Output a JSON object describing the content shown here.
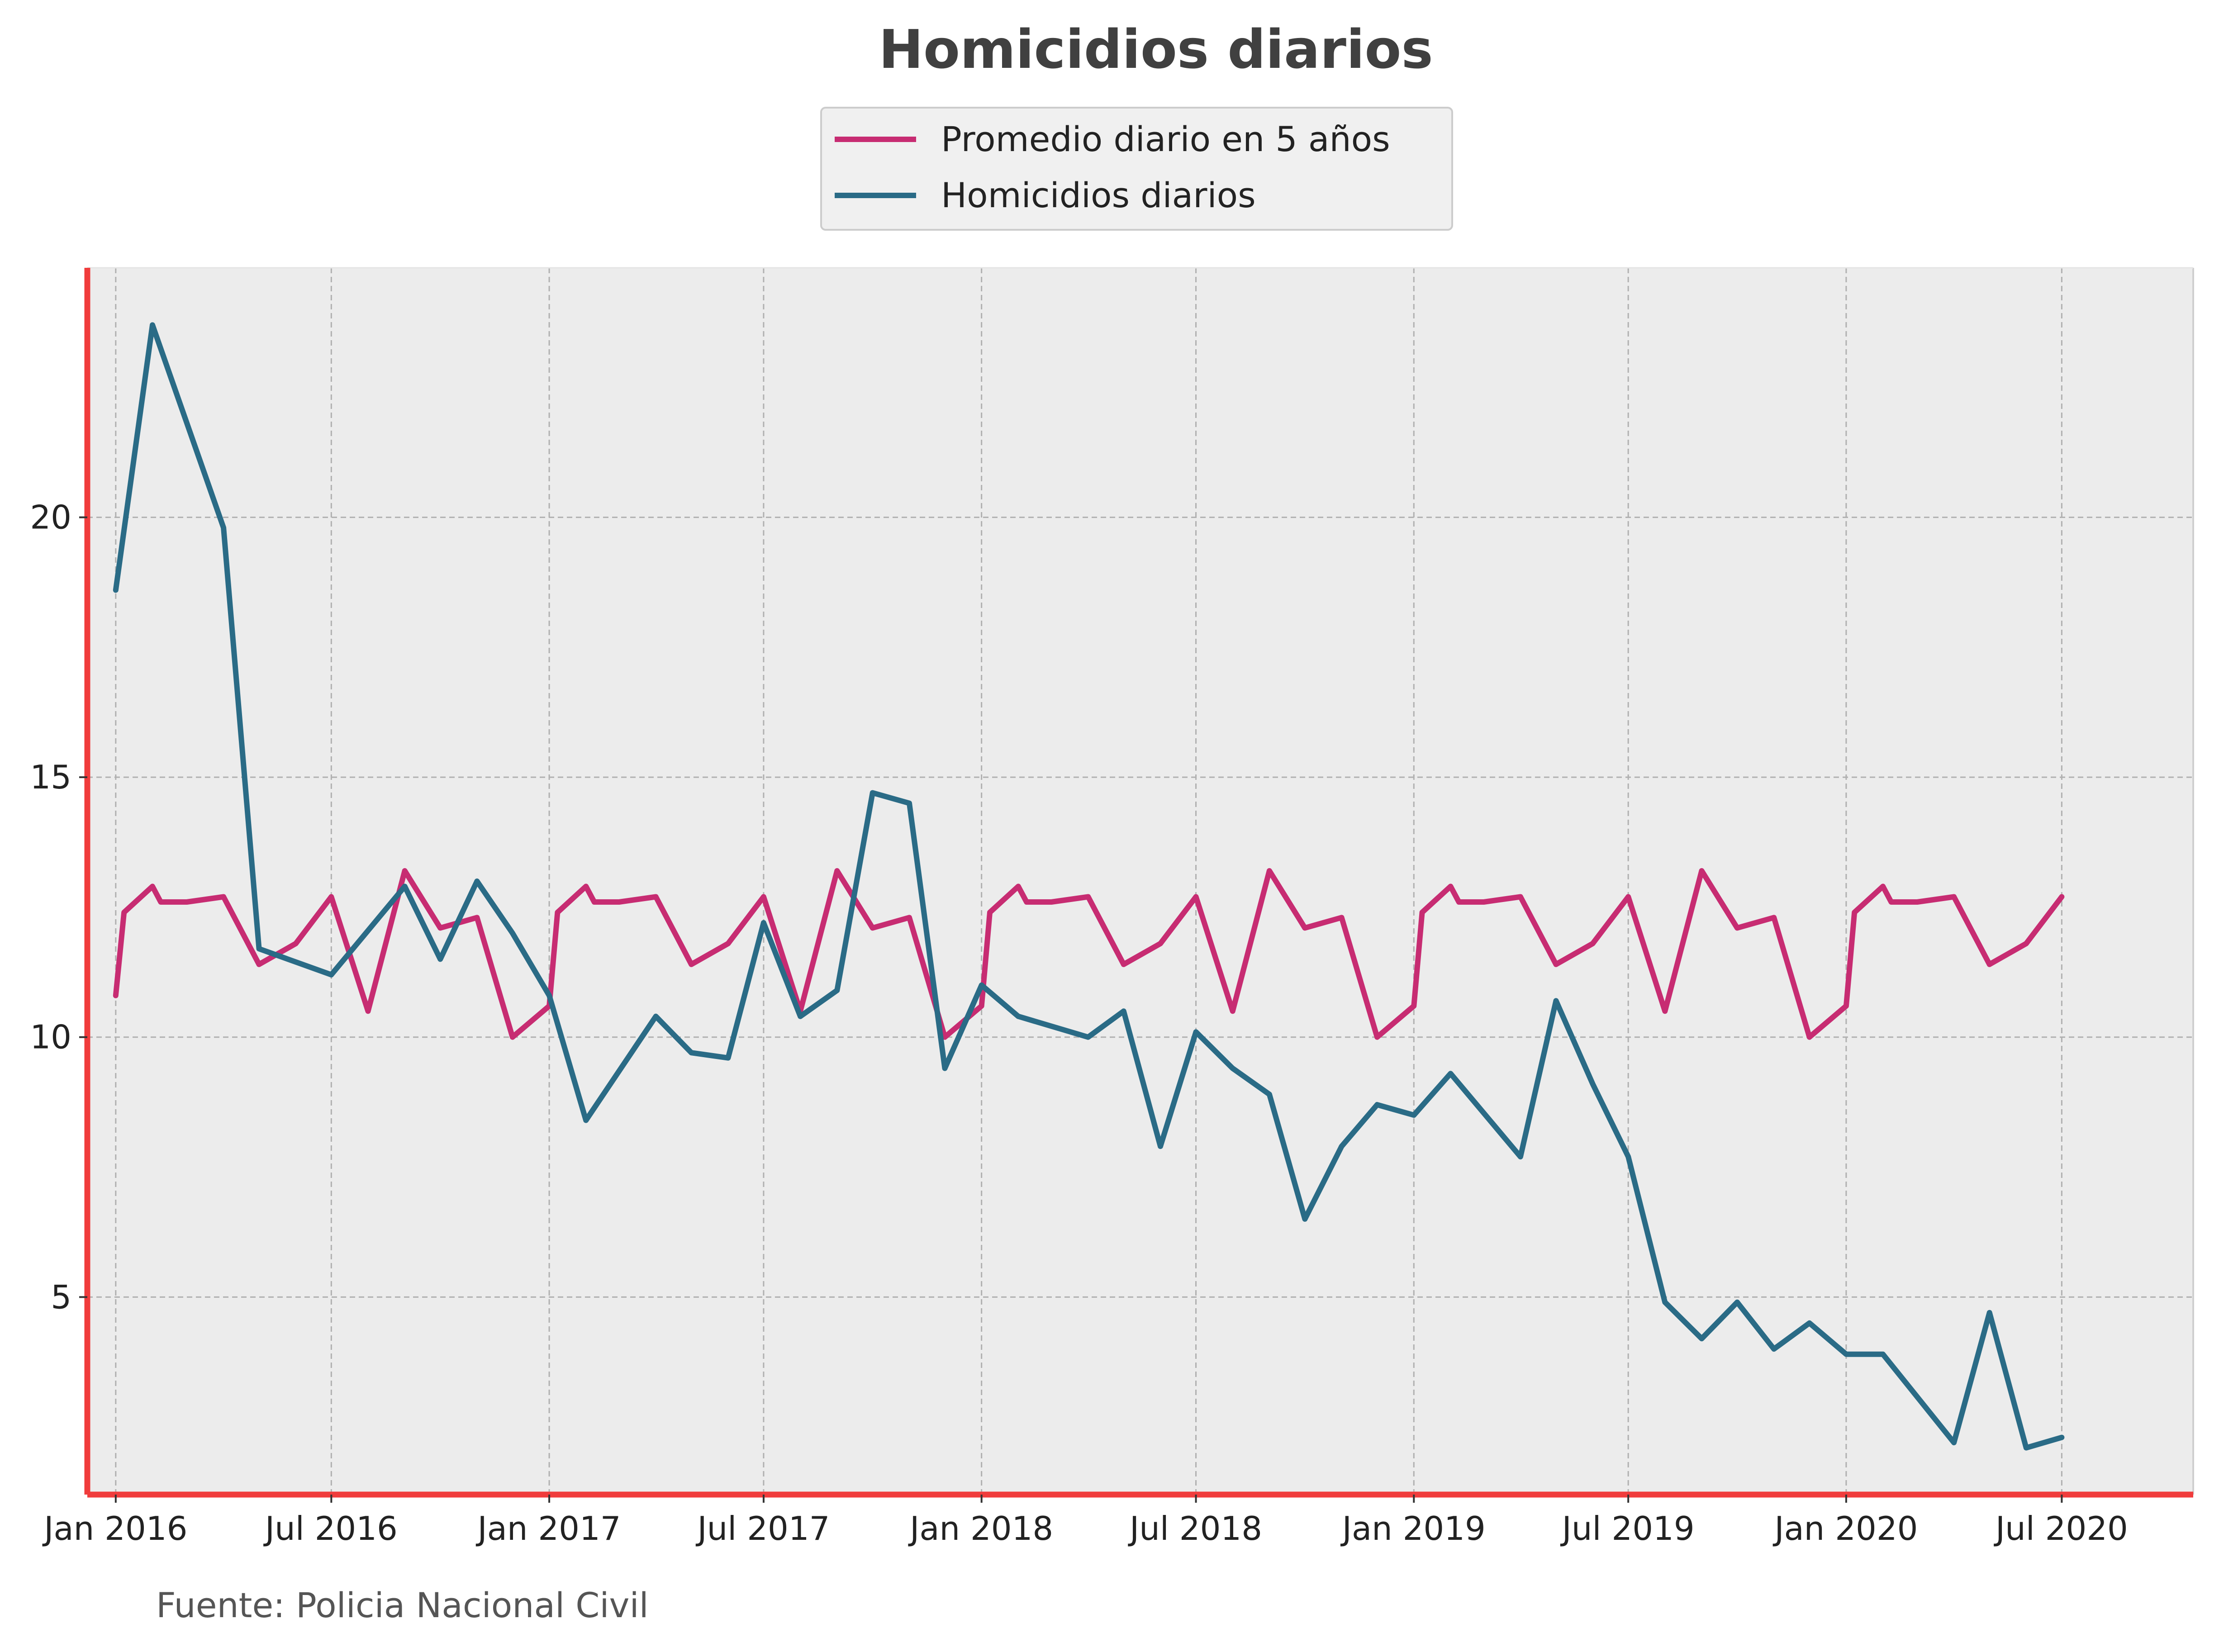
{
  "colors": {
    "promedio": "#c72c72",
    "homicidios": "#2a6b86",
    "axis_accent": "#f03c3c",
    "plot_bg": "#ececec",
    "grid": "#b0b0b0"
  },
  "chart_data": {
    "type": "line",
    "title": "Homicidios diarios",
    "xlabel": "",
    "ylabel": "",
    "source": "Fuente: Policia Nacional Civil",
    "legend_position": "top-center",
    "grid": true,
    "xlim": [
      "2015-12-08",
      "2020-10-20"
    ],
    "ylim": [
      1.2,
      24.8
    ],
    "y_ticks": [
      5,
      10,
      15,
      20
    ],
    "x_ticks": [
      {
        "date": "2016-01-01",
        "label": "Jan 2016"
      },
      {
        "date": "2016-07-01",
        "label": "Jul 2016"
      },
      {
        "date": "2017-01-01",
        "label": "Jan 2017"
      },
      {
        "date": "2017-07-01",
        "label": "Jul 2017"
      },
      {
        "date": "2018-01-01",
        "label": "Jan 2018"
      },
      {
        "date": "2018-07-01",
        "label": "Jul 2018"
      },
      {
        "date": "2019-01-01",
        "label": "Jan 2019"
      },
      {
        "date": "2019-07-01",
        "label": "Jul 2019"
      },
      {
        "date": "2020-01-01",
        "label": "Jan 2020"
      },
      {
        "date": "2020-07-01",
        "label": "Jul 2020"
      }
    ],
    "series": [
      {
        "name": "Promedio diario en 5 años",
        "color": "#c72c72",
        "points": [
          [
            "2016-01-01",
            10.8
          ],
          [
            "2016-01-08",
            12.4
          ],
          [
            "2016-02-01",
            12.9
          ],
          [
            "2016-02-08",
            12.6
          ],
          [
            "2016-03-01",
            12.6
          ],
          [
            "2016-04-01",
            12.7
          ],
          [
            "2016-05-01",
            11.4
          ],
          [
            "2016-06-01",
            11.8
          ],
          [
            "2016-07-01",
            12.7
          ],
          [
            "2016-08-01",
            10.5
          ],
          [
            "2016-09-01",
            13.2
          ],
          [
            "2016-10-01",
            12.1
          ],
          [
            "2016-11-01",
            12.3
          ],
          [
            "2016-12-01",
            10.0
          ],
          [
            "2017-01-01",
            10.6
          ],
          [
            "2017-01-08",
            12.4
          ],
          [
            "2017-02-01",
            12.9
          ],
          [
            "2017-02-08",
            12.6
          ],
          [
            "2017-03-01",
            12.6
          ],
          [
            "2017-04-01",
            12.7
          ],
          [
            "2017-05-01",
            11.4
          ],
          [
            "2017-06-01",
            11.8
          ],
          [
            "2017-07-01",
            12.7
          ],
          [
            "2017-08-01",
            10.5
          ],
          [
            "2017-09-01",
            13.2
          ],
          [
            "2017-10-01",
            12.1
          ],
          [
            "2017-11-01",
            12.3
          ],
          [
            "2017-12-01",
            10.0
          ],
          [
            "2018-01-01",
            10.6
          ],
          [
            "2018-01-08",
            12.4
          ],
          [
            "2018-02-01",
            12.9
          ],
          [
            "2018-02-08",
            12.6
          ],
          [
            "2018-03-01",
            12.6
          ],
          [
            "2018-04-01",
            12.7
          ],
          [
            "2018-05-01",
            11.4
          ],
          [
            "2018-06-01",
            11.8
          ],
          [
            "2018-07-01",
            12.7
          ],
          [
            "2018-08-01",
            10.5
          ],
          [
            "2018-09-01",
            13.2
          ],
          [
            "2018-10-01",
            12.1
          ],
          [
            "2018-11-01",
            12.3
          ],
          [
            "2018-12-01",
            10.0
          ],
          [
            "2019-01-01",
            10.6
          ],
          [
            "2019-01-08",
            12.4
          ],
          [
            "2019-02-01",
            12.9
          ],
          [
            "2019-02-08",
            12.6
          ],
          [
            "2019-03-01",
            12.6
          ],
          [
            "2019-04-01",
            12.7
          ],
          [
            "2019-05-01",
            11.4
          ],
          [
            "2019-06-01",
            11.8
          ],
          [
            "2019-07-01",
            12.7
          ],
          [
            "2019-08-01",
            10.5
          ],
          [
            "2019-09-01",
            13.2
          ],
          [
            "2019-10-01",
            12.1
          ],
          [
            "2019-11-01",
            12.3
          ],
          [
            "2019-12-01",
            10.0
          ],
          [
            "2020-01-01",
            10.6
          ],
          [
            "2020-01-08",
            12.4
          ],
          [
            "2020-02-01",
            12.9
          ],
          [
            "2020-02-08",
            12.6
          ],
          [
            "2020-03-01",
            12.6
          ],
          [
            "2020-04-01",
            12.7
          ],
          [
            "2020-05-01",
            11.4
          ],
          [
            "2020-06-01",
            11.8
          ],
          [
            "2020-07-01",
            12.7
          ]
        ]
      },
      {
        "name": "Homicidios diarios",
        "color": "#2a6b86",
        "points": [
          [
            "2016-01-01",
            18.6
          ],
          [
            "2016-02-01",
            23.7
          ],
          [
            "2016-04-01",
            19.8
          ],
          [
            "2016-05-01",
            11.7
          ],
          [
            "2016-07-01",
            11.2
          ],
          [
            "2016-09-01",
            12.9
          ],
          [
            "2016-10-01",
            11.5
          ],
          [
            "2016-11-01",
            13.0
          ],
          [
            "2016-12-01",
            12.0
          ],
          [
            "2017-01-01",
            10.8
          ],
          [
            "2017-02-01",
            8.4
          ],
          [
            "2017-04-01",
            10.4
          ],
          [
            "2017-05-01",
            9.7
          ],
          [
            "2017-06-01",
            9.6
          ],
          [
            "2017-07-01",
            12.2
          ],
          [
            "2017-08-01",
            10.4
          ],
          [
            "2017-09-01",
            10.9
          ],
          [
            "2017-10-01",
            14.7
          ],
          [
            "2017-11-01",
            14.5
          ],
          [
            "2017-12-01",
            9.4
          ],
          [
            "2018-01-01",
            11.0
          ],
          [
            "2018-02-01",
            10.4
          ],
          [
            "2018-04-01",
            10.0
          ],
          [
            "2018-05-01",
            10.5
          ],
          [
            "2018-06-01",
            7.9
          ],
          [
            "2018-07-01",
            10.1
          ],
          [
            "2018-08-01",
            9.4
          ],
          [
            "2018-09-01",
            8.9
          ],
          [
            "2018-10-01",
            6.5
          ],
          [
            "2018-11-01",
            7.9
          ],
          [
            "2018-12-01",
            8.7
          ],
          [
            "2019-01-01",
            8.5
          ],
          [
            "2019-02-01",
            9.3
          ],
          [
            "2019-04-01",
            7.7
          ],
          [
            "2019-05-01",
            10.7
          ],
          [
            "2019-06-01",
            9.1
          ],
          [
            "2019-07-01",
            7.7
          ],
          [
            "2019-08-01",
            4.9
          ],
          [
            "2019-09-01",
            4.2
          ],
          [
            "2019-10-01",
            4.9
          ],
          [
            "2019-11-01",
            4.0
          ],
          [
            "2019-12-01",
            4.5
          ],
          [
            "2020-01-01",
            3.9
          ],
          [
            "2020-02-01",
            3.9
          ],
          [
            "2020-04-01",
            2.2
          ],
          [
            "2020-05-01",
            4.7
          ],
          [
            "2020-06-01",
            2.1
          ],
          [
            "2020-07-01",
            2.3
          ]
        ]
      }
    ]
  }
}
